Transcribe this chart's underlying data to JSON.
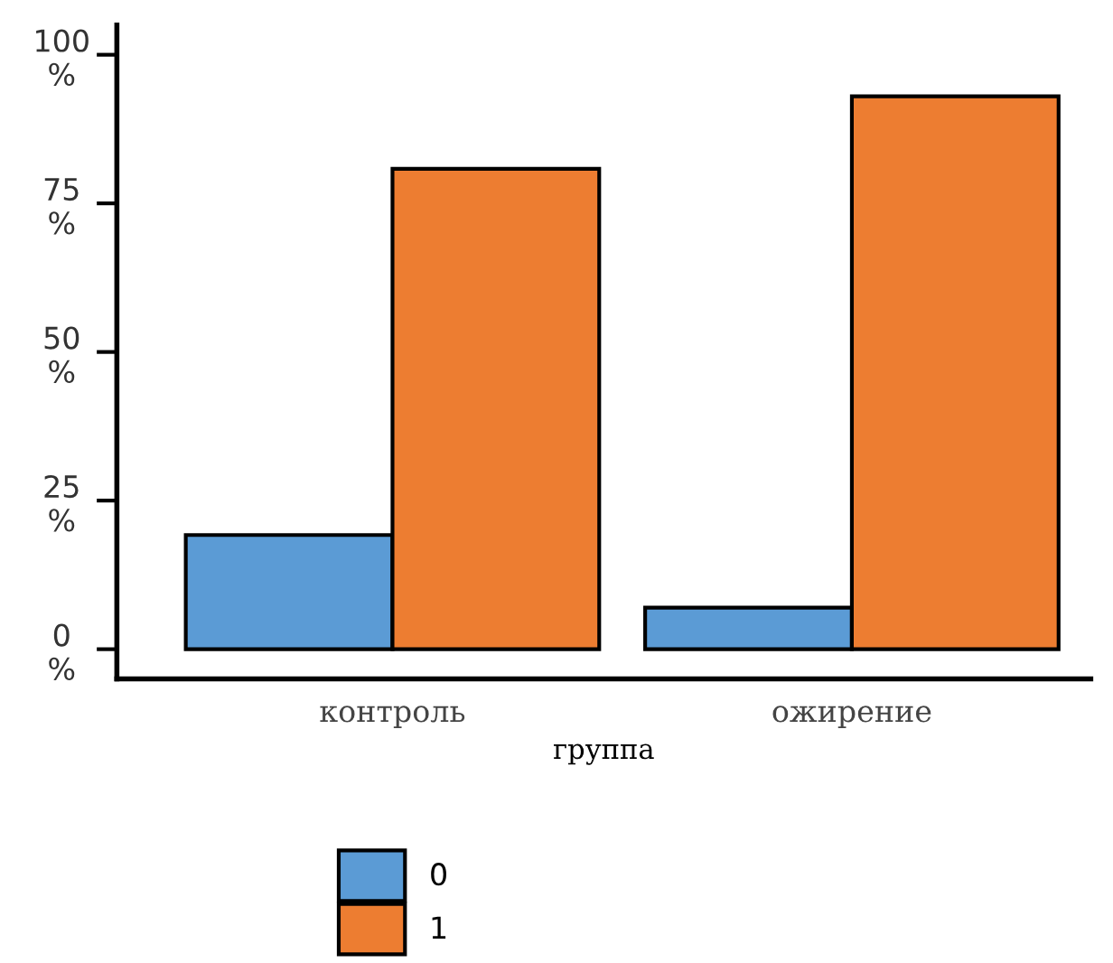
{
  "chart_data": {
    "type": "bar",
    "xlabel": "группа",
    "categories": [
      "контроль",
      "ожирение"
    ],
    "series": [
      {
        "name": "0",
        "color": "#5b9bd5",
        "values": [
          19.2,
          7.0
        ]
      },
      {
        "name": "1",
        "color": "#ed7d31",
        "values": [
          80.8,
          93.0
        ]
      }
    ],
    "ylim": [
      -5,
      105
    ],
    "yticks": [
      {
        "value": 0,
        "label": "0\n%"
      },
      {
        "value": 25,
        "label": "25\n%"
      },
      {
        "value": 50,
        "label": "50\n%"
      },
      {
        "value": 75,
        "label": "75\n%"
      },
      {
        "value": 100,
        "label": "100\n%"
      }
    ],
    "grid": false,
    "legend": "bottom"
  }
}
